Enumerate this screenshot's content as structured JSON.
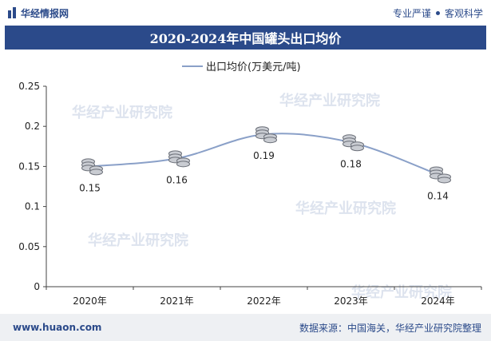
{
  "header": {
    "brand": "华经情报网",
    "slogan_left": "专业严谨",
    "slogan_right": "客观科学"
  },
  "title": "2020-2024年中国罐头出口均价",
  "footer": {
    "url": "www.huaon.com",
    "source": "数据来源：中国海关，华经产业研究院整理"
  },
  "colors": {
    "brand": "#2b4a8a",
    "line": "#8aa0c8"
  },
  "chart_data": {
    "type": "line",
    "categories": [
      "2020年",
      "2021年",
      "2022年",
      "2023年",
      "2024年"
    ],
    "series": [
      {
        "name": "出口均价(万美元/吨)",
        "values": [
          0.15,
          0.16,
          0.19,
          0.18,
          0.14
        ]
      }
    ],
    "data_labels": [
      "0.15",
      "0.16",
      "0.19",
      "0.18",
      "0.14"
    ],
    "yticks": [
      "0",
      "0.05",
      "0.1",
      "0.15",
      "0.2",
      "0.25"
    ],
    "ylim": [
      0,
      0.25
    ],
    "legend_position": "top-center",
    "grid": false,
    "watermark": "华经产业研究院"
  }
}
